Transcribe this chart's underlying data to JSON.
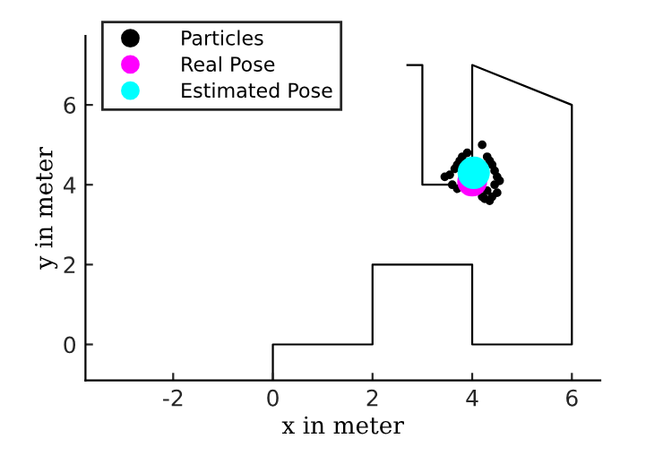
{
  "chart_data": {
    "type": "scatter",
    "xlabel": "x in meter",
    "ylabel": "y in meter",
    "xlim": [
      -3.76,
      6.57
    ],
    "ylim": [
      -0.9,
      7.73
    ],
    "xticks": [
      -2,
      0,
      2,
      4,
      6
    ],
    "yticks": [
      0,
      2,
      4,
      6
    ],
    "grid": false,
    "legend": "top left",
    "marker": "circle",
    "series": [
      {
        "type": "line",
        "color": "#000000",
        "marker": "none",
        "x": [
          0,
          0,
          2,
          2,
          4,
          4,
          6,
          6,
          4,
          4,
          null,
          3.6,
          3,
          3,
          2.7
        ],
        "values": [
          -0.9,
          0,
          0,
          2,
          2,
          0,
          0,
          6,
          7,
          4.65,
          null,
          4,
          4,
          7,
          7
        ]
      },
      {
        "name": "Particles",
        "color": "#000000",
        "x": [
          3.45,
          3.55,
          3.65,
          3.7,
          3.75,
          3.8,
          3.9,
          4.2,
          4.3,
          4.35,
          4.4,
          4.45,
          4.5,
          4.55,
          4.3,
          4.2,
          3.7,
          3.6,
          4.45,
          4.5,
          4.4,
          4.35,
          4.25
        ],
        "values": [
          4.2,
          4.25,
          4.4,
          4.5,
          4.6,
          4.7,
          4.8,
          5.0,
          4.7,
          4.6,
          4.5,
          4.35,
          4.2,
          4.1,
          3.85,
          3.7,
          3.9,
          4.0,
          4.0,
          3.8,
          3.7,
          3.6,
          3.65
        ]
      },
      {
        "name": "Real Pose",
        "color": "#ff00ff",
        "x": [
          4.0
        ],
        "values": [
          4.08
        ]
      },
      {
        "name": "Estimated Pose",
        "color": "#00ffff",
        "x": [
          4.03
        ],
        "values": [
          4.3
        ]
      }
    ]
  }
}
